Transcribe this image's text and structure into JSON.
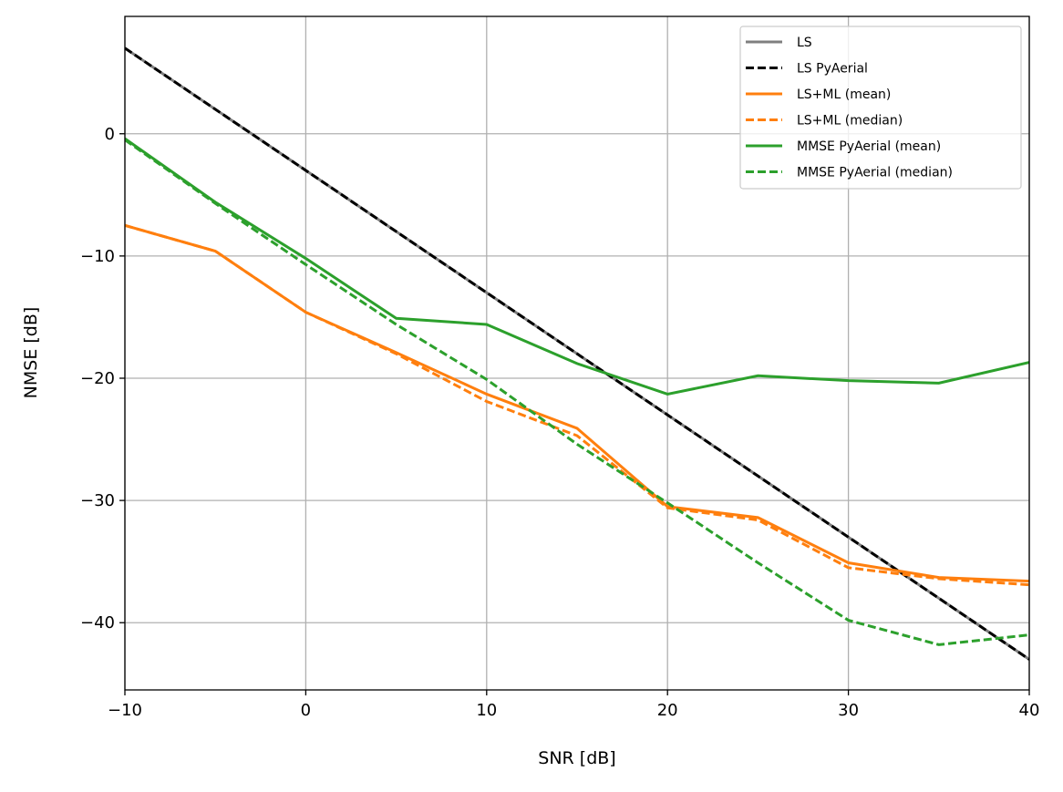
{
  "chart_data": {
    "type": "line",
    "title": "",
    "xlabel": "SNR [dB]",
    "ylabel": "NMSE [dB]",
    "xlim": [
      -10,
      40
    ],
    "ylim": [
      -45.5,
      9.6
    ],
    "xticks": [
      -10,
      0,
      10,
      20,
      30,
      40
    ],
    "yticks": [
      -40,
      -30,
      -20,
      -10,
      0
    ],
    "xtick_labels": [
      "−10",
      "0",
      "10",
      "20",
      "30",
      "40"
    ],
    "ytick_labels": [
      "−40",
      "−30",
      "−20",
      "−10",
      "0"
    ],
    "grid": true,
    "legend_position": "top-right",
    "x": [
      -10,
      -5,
      0,
      5,
      10,
      15,
      20,
      25,
      30,
      35,
      40
    ],
    "series": [
      {
        "name": "LS",
        "color": "#7f7f7f",
        "dash": "solid",
        "values": [
          7,
          2,
          -3,
          -8,
          -13,
          -18,
          -23,
          -28,
          -33,
          -38,
          -43
        ]
      },
      {
        "name": "LS PyAerial",
        "color": "#000000",
        "dash": "dashed",
        "values": [
          7,
          2,
          -3,
          -8,
          -13,
          -18,
          -23,
          -28,
          -33,
          -38,
          -43
        ]
      },
      {
        "name": "LS+ML (mean)",
        "color": "#ff7f0e",
        "dash": "solid",
        "values": [
          -7.5,
          -9.6,
          -14.6,
          -17.9,
          -21.3,
          -24.1,
          -30.5,
          -31.4,
          -35.1,
          -36.3,
          -36.6
        ]
      },
      {
        "name": "LS+ML (median)",
        "color": "#ff7f0e",
        "dash": "dashed",
        "values": [
          -7.5,
          -9.6,
          -14.6,
          -18.0,
          -21.9,
          -24.7,
          -30.6,
          -31.6,
          -35.5,
          -36.4,
          -36.9
        ]
      },
      {
        "name": "MMSE PyAerial (mean)",
        "color": "#2ca02c",
        "dash": "solid",
        "values": [
          -0.4,
          -5.6,
          -10.2,
          -15.1,
          -15.6,
          -18.8,
          -21.3,
          -19.8,
          -20.2,
          -20.4,
          -18.7
        ]
      },
      {
        "name": "MMSE PyAerial (median)",
        "color": "#2ca02c",
        "dash": "dashed",
        "values": [
          -0.5,
          -5.7,
          -10.7,
          -15.6,
          -20.1,
          -25.4,
          -30.2,
          -35.1,
          -39.8,
          -41.8,
          -41.0
        ]
      }
    ]
  }
}
